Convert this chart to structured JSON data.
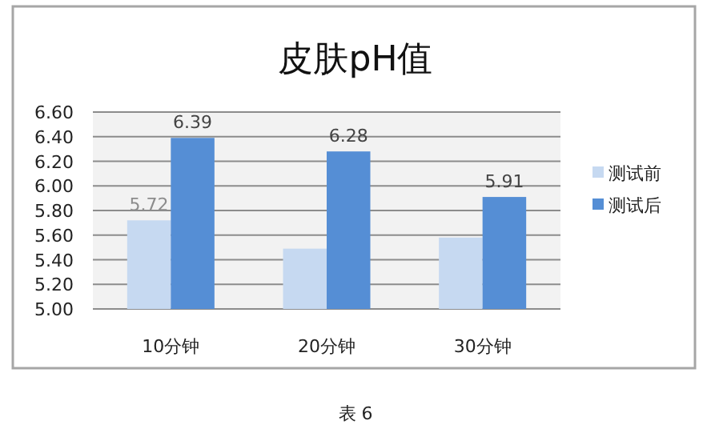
{
  "chart_data": {
    "type": "bar",
    "title": "皮肤pH值",
    "categories": [
      "10分钟",
      "20分钟",
      "30分钟"
    ],
    "series": [
      {
        "name": "测试前",
        "color": "#c6d9f1",
        "values": [
          5.72,
          5.49,
          5.58
        ],
        "value_labels": [
          "5.72",
          null,
          null
        ]
      },
      {
        "name": "测试后",
        "color": "#558ed5",
        "values": [
          6.39,
          6.28,
          5.91
        ],
        "value_labels": [
          "6.39",
          "6.28",
          "5.91"
        ]
      }
    ],
    "ylim": [
      5.0,
      6.6
    ],
    "yticks": [
      {
        "value": 5.0,
        "label": "5.00"
      },
      {
        "value": 5.2,
        "label": "5.20"
      },
      {
        "value": 5.4,
        "label": "5.40"
      },
      {
        "value": 5.6,
        "label": "5.60"
      },
      {
        "value": 5.8,
        "label": "5.80"
      },
      {
        "value": 6.0,
        "label": "6.00"
      },
      {
        "value": 6.2,
        "label": "6.20"
      },
      {
        "value": 6.4,
        "label": "6.40"
      },
      {
        "value": 6.6,
        "label": "6.60"
      }
    ],
    "grid": "y",
    "legend": "right",
    "annotations": [
      "表 6"
    ]
  }
}
